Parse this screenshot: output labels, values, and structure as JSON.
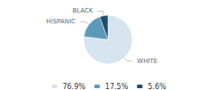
{
  "chart_data": {
    "type": "pie",
    "categories": [
      "WHITE",
      "HISPANIC",
      "BLACK"
    ],
    "values": [
      76.9,
      17.5,
      5.6
    ],
    "value_labels": [
      "76.9%",
      "17.5%",
      "5.6%"
    ],
    "colors": [
      "#d6e4f0",
      "#5b9ab8",
      "#1f4e6e"
    ],
    "legend": "bottom"
  }
}
